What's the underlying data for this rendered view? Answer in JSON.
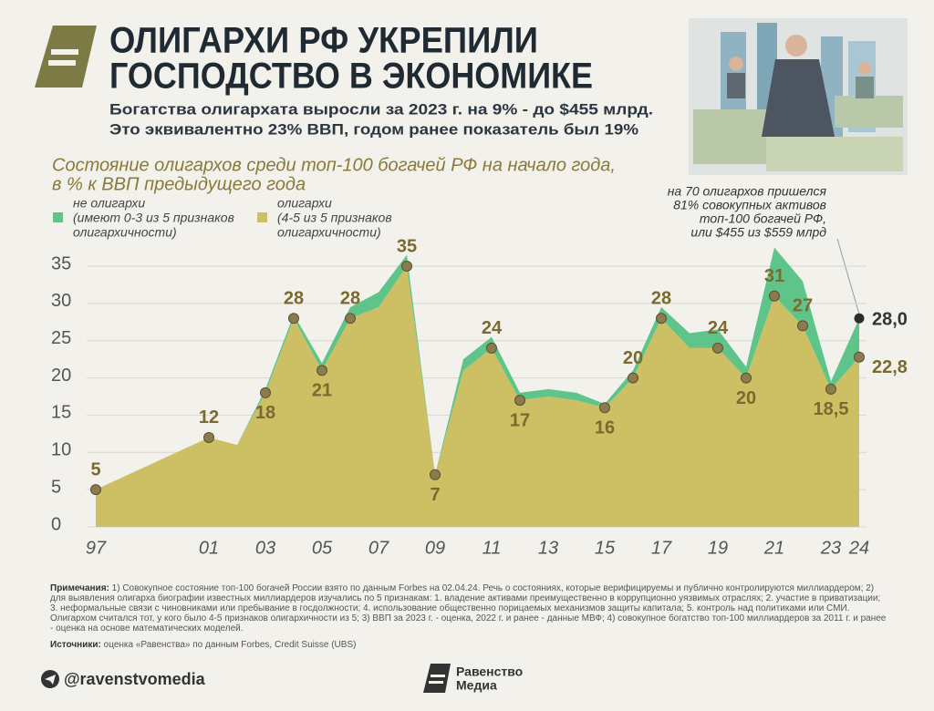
{
  "header": {
    "title_lines": [
      "ОЛИГАРХИ РФ УКРЕПИЛИ",
      "ГОСПОДСТВО В ЭКОНОМИКЕ"
    ],
    "subtitle_lines": [
      "Богатства олигархата выросли за 2023 г. на 9% - до $455 млрд.",
      "Это эквивалентно 23% ВВП, годом ранее показатель был 19%"
    ]
  },
  "chart_data": {
    "type": "stacked-area",
    "title_lines": [
      "Состояние олигархов среди топ-100 богачей РФ на начало года,",
      "в % к ВВП предыдущего года"
    ],
    "x": [
      1997,
      2001,
      2002,
      2003,
      2004,
      2005,
      2006,
      2007,
      2008,
      2009,
      2010,
      2011,
      2012,
      2013,
      2014,
      2015,
      2016,
      2017,
      2018,
      2019,
      2020,
      2021,
      2022,
      2023,
      2024
    ],
    "series": [
      {
        "name": "олигархи",
        "description": [
          "(4-5 из 5 признаков",
          "олигархичности)"
        ],
        "color": "#cdbf63",
        "values": [
          5,
          12,
          11,
          18,
          28,
          21,
          28,
          29.5,
          35,
          7,
          21,
          24,
          17,
          17.5,
          17,
          16,
          20,
          28,
          24,
          24,
          20,
          31,
          27,
          18.5,
          22.8
        ],
        "value_labels": [
          "5",
          "12",
          null,
          "18",
          "28",
          "21",
          "28",
          null,
          "35",
          "7",
          null,
          "24",
          "17",
          null,
          null,
          "16",
          "20",
          "28",
          null,
          "24",
          "20",
          "31",
          "27",
          "18,5",
          "22,8"
        ]
      },
      {
        "name": "не олигархи",
        "description": [
          "(имеют 0-3 из 5 признаков",
          "олигархичности)"
        ],
        "color": "#5ec48a",
        "values": [
          0,
          0,
          0,
          0.5,
          0.5,
          1,
          1.5,
          2,
          1.5,
          0,
          1.5,
          1.5,
          1,
          1,
          1,
          0.5,
          1,
          1.5,
          2,
          2.5,
          1.5,
          6.5,
          6,
          1,
          5.2
        ]
      }
    ],
    "total_2024": {
      "value": 28.0,
      "label": "28,0"
    },
    "annotation_lines": [
      "на 70 олигархов пришелся",
      "81% совокупных активов",
      "топ-100 богачей РФ,",
      "или $455 из $559 млрд"
    ],
    "xlim": [
      1997,
      2024
    ],
    "xticks": [
      {
        "value": 1997,
        "label": "97"
      },
      {
        "value": 2001,
        "label": "01"
      },
      {
        "value": 2003,
        "label": "03"
      },
      {
        "value": 2005,
        "label": "05"
      },
      {
        "value": 2007,
        "label": "07"
      },
      {
        "value": 2009,
        "label": "09"
      },
      {
        "value": 2011,
        "label": "11"
      },
      {
        "value": 2013,
        "label": "13"
      },
      {
        "value": 2015,
        "label": "15"
      },
      {
        "value": 2017,
        "label": "17"
      },
      {
        "value": 2019,
        "label": "19"
      },
      {
        "value": 2021,
        "label": "21"
      },
      {
        "value": 2023,
        "label": "23"
      },
      {
        "value": 2024,
        "label": "24"
      }
    ],
    "ylim": [
      0,
      38
    ],
    "yticks": [
      0,
      5,
      10,
      15,
      20,
      25,
      30,
      35
    ],
    "grid": true
  },
  "notes": {
    "label": "Примечания:",
    "text": "1) Совокупное состояние топ-100 богачей России взято по данным Forbes на 02.04.24. Речь о состояниях, которые верифицируемы и публично контролируются миллиардером; 2) для выявления олигарха биографии известных миллиардеров изучались по 5 признакам: 1. владение активами преимущественно в коррупционно уязвимых отраслях; 2. участие в приватизации; 3. неформальные связи с чиновниками или пребывание в госдолжности; 4. использование общественно порицаемых механизмов защиты капитала; 5. контроль над политиками или СМИ. Олигархом считался тот, у кого было 4-5 признаков олигархичности из 5; 3) ВВП за 2023 г. - оценка, 2022 г. и ранее - данные МВФ; 4) совокупное богатство топ-100 миллиардеров за 2011 г. и ранее - оценка на основе математических моделей."
  },
  "sources": {
    "label": "Источники:",
    "text": "оценка «Равенства» по данным Forbes, Credit Suisse (UBS)"
  },
  "footer": {
    "handle": "@ravenstvomedia",
    "brand_lines": [
      "Равенство",
      "Медиа"
    ]
  }
}
